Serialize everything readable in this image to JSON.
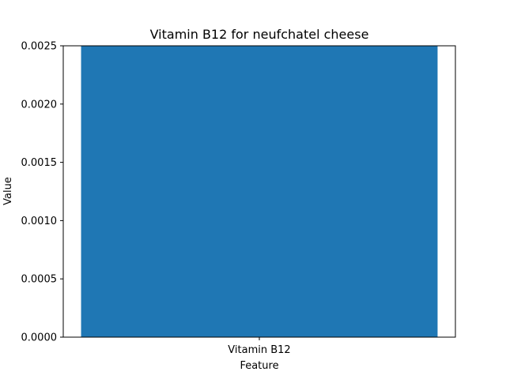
{
  "chart_data": {
    "type": "bar",
    "title": "Vitamin B12 for neufchatel cheese",
    "xlabel": "Feature",
    "ylabel": "Value",
    "categories": [
      "Vitamin B12"
    ],
    "values": [
      0.0025
    ],
    "ylim": [
      0,
      0.0025
    ],
    "yticks": [
      "0.0000",
      "0.0005",
      "0.0010",
      "0.0015",
      "0.0020",
      "0.0025"
    ],
    "ytick_values": [
      0,
      0.0005,
      0.001,
      0.0015,
      0.002,
      0.0025
    ],
    "grid": false,
    "legend": "none",
    "bar_color": "#1f77b4"
  }
}
